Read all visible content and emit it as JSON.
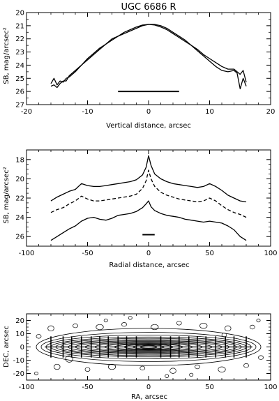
{
  "chart_data": [
    {
      "type": "line",
      "title": "UGC 6686 R",
      "xlabel": "Vertical distance, arcsec",
      "ylabel": "SB, mag/arcsec²",
      "xlim": [
        -20,
        20
      ],
      "ylim": [
        27,
        20
      ],
      "y_inverted": true,
      "xticks": [
        -20,
        -10,
        0,
        10,
        20
      ],
      "yticks": [
        20,
        21,
        22,
        23,
        24,
        25,
        26,
        27
      ],
      "grid": false,
      "series": [
        {
          "x": [
            -16,
            -15.5,
            -15,
            -14.5,
            -14,
            -13.5,
            -13,
            -12,
            -11,
            -10,
            -9,
            -8,
            -7,
            -6,
            -5,
            -4,
            -3,
            -2,
            -1,
            0,
            1,
            2,
            3,
            4,
            5,
            6,
            7,
            8,
            9,
            10,
            11,
            12,
            13,
            14,
            14.5,
            15,
            15.5,
            16
          ],
          "y": [
            25.4,
            25.0,
            25.5,
            25.2,
            25.3,
            25.0,
            24.9,
            24.5,
            24.0,
            23.5,
            23.1,
            22.7,
            22.4,
            22.1,
            21.8,
            21.5,
            21.3,
            21.1,
            20.95,
            20.9,
            20.95,
            21.1,
            21.3,
            21.6,
            21.9,
            22.2,
            22.5,
            22.8,
            23.2,
            23.5,
            23.8,
            24.1,
            24.3,
            24.3,
            24.5,
            24.7,
            24.4,
            25.3
          ]
        },
        {
          "x": [
            -16,
            -15.5,
            -15,
            -14.5,
            -14,
            -13.5,
            -13,
            -12,
            -11,
            -10,
            -9,
            -8,
            -7,
            -6,
            -5,
            -4,
            -3,
            -2,
            -1,
            0,
            1,
            2,
            3,
            4,
            5,
            6,
            7,
            8,
            9,
            10,
            11,
            12,
            13,
            14,
            14.5,
            15,
            15.5,
            16
          ],
          "y": [
            25.6,
            25.5,
            25.7,
            25.4,
            25.2,
            25.2,
            24.8,
            24.4,
            24.0,
            23.6,
            23.2,
            22.8,
            22.4,
            22.0,
            21.8,
            21.6,
            21.4,
            21.2,
            21.0,
            20.9,
            20.9,
            21.0,
            21.2,
            21.5,
            21.8,
            22.1,
            22.5,
            22.9,
            23.3,
            23.7,
            24.1,
            24.4,
            24.5,
            24.4,
            24.6,
            25.8,
            25.0,
            25.6
          ]
        }
      ],
      "annotation_bar": {
        "x": [
          -5,
          5
        ],
        "y": 26
      }
    },
    {
      "type": "line",
      "title": "",
      "xlabel": "Radial distance, arcsec",
      "ylabel": "SB, mag/arcsec²",
      "xlim": [
        -100,
        100
      ],
      "ylim": [
        27,
        17
      ],
      "y_inverted": true,
      "xticks": [
        -100,
        -50,
        0,
        50,
        100
      ],
      "yticks": [
        18,
        20,
        22,
        24,
        26
      ],
      "grid": false,
      "series": [
        {
          "style": "solid",
          "x": [
            -80,
            -75,
            -70,
            -65,
            -60,
            -55,
            -50,
            -45,
            -40,
            -35,
            -30,
            -25,
            -20,
            -15,
            -10,
            -5,
            -2,
            0,
            2,
            5,
            10,
            15,
            20,
            25,
            30,
            35,
            40,
            45,
            50,
            55,
            60,
            65,
            70,
            75,
            80
          ],
          "y": [
            22.3,
            21.9,
            21.6,
            21.3,
            21.1,
            20.5,
            20.7,
            20.8,
            20.8,
            20.7,
            20.6,
            20.5,
            20.4,
            20.3,
            20.1,
            19.6,
            18.8,
            17.6,
            18.6,
            19.5,
            20.0,
            20.3,
            20.5,
            20.6,
            20.7,
            20.8,
            20.9,
            20.8,
            20.5,
            20.8,
            21.2,
            21.7,
            22.0,
            22.3,
            22.4
          ]
        },
        {
          "style": "dashed",
          "x": [
            -80,
            -75,
            -70,
            -65,
            -60,
            -55,
            -50,
            -45,
            -40,
            -35,
            -30,
            -25,
            -20,
            -15,
            -10,
            -5,
            -2,
            0,
            2,
            5,
            10,
            15,
            20,
            25,
            30,
            35,
            40,
            45,
            50,
            55,
            60,
            65,
            70,
            75,
            80
          ],
          "y": [
            23.5,
            23.2,
            23.0,
            22.6,
            22.3,
            21.8,
            22.1,
            22.3,
            22.3,
            22.2,
            22.1,
            22.0,
            21.9,
            21.8,
            21.6,
            21.0,
            20.2,
            19.1,
            20.0,
            20.8,
            21.4,
            21.7,
            21.9,
            22.1,
            22.2,
            22.3,
            22.4,
            22.3,
            22.0,
            22.3,
            22.8,
            23.2,
            23.5,
            23.7,
            24.0
          ]
        },
        {
          "style": "solid",
          "x": [
            -80,
            -75,
            -70,
            -65,
            -60,
            -55,
            -50,
            -45,
            -40,
            -35,
            -30,
            -25,
            -20,
            -15,
            -10,
            -5,
            -2,
            0,
            2,
            5,
            10,
            15,
            20,
            25,
            30,
            35,
            40,
            45,
            50,
            55,
            60,
            65,
            70,
            75,
            80
          ],
          "y": [
            26.4,
            26.0,
            25.6,
            25.2,
            24.9,
            24.4,
            24.1,
            24.0,
            24.2,
            24.3,
            24.1,
            23.8,
            23.7,
            23.6,
            23.4,
            23.0,
            22.6,
            22.3,
            22.9,
            23.3,
            23.6,
            23.8,
            23.9,
            24.0,
            24.2,
            24.3,
            24.4,
            24.5,
            24.4,
            24.5,
            24.6,
            24.9,
            25.3,
            26.0,
            26.4
          ]
        }
      ],
      "annotation_bar": {
        "x": [
          -5,
          5
        ],
        "y": 25.8
      }
    },
    {
      "type": "contour",
      "title": "",
      "xlabel": "RA, arcsec",
      "ylabel": "DEC, arcsec",
      "xlim": [
        -100,
        100
      ],
      "ylim": [
        -25,
        25
      ],
      "xticks": [
        -100,
        -50,
        0,
        50,
        100
      ],
      "yticks": [
        -20,
        -10,
        0,
        10,
        20
      ],
      "grid": false,
      "cut_positions": [
        -80,
        -70,
        -63,
        -55,
        -47,
        -40,
        -33,
        -25,
        -18,
        -10,
        10,
        18,
        25,
        33,
        40,
        47,
        55,
        63,
        70,
        80
      ],
      "cut_halfheight": 8
    }
  ]
}
